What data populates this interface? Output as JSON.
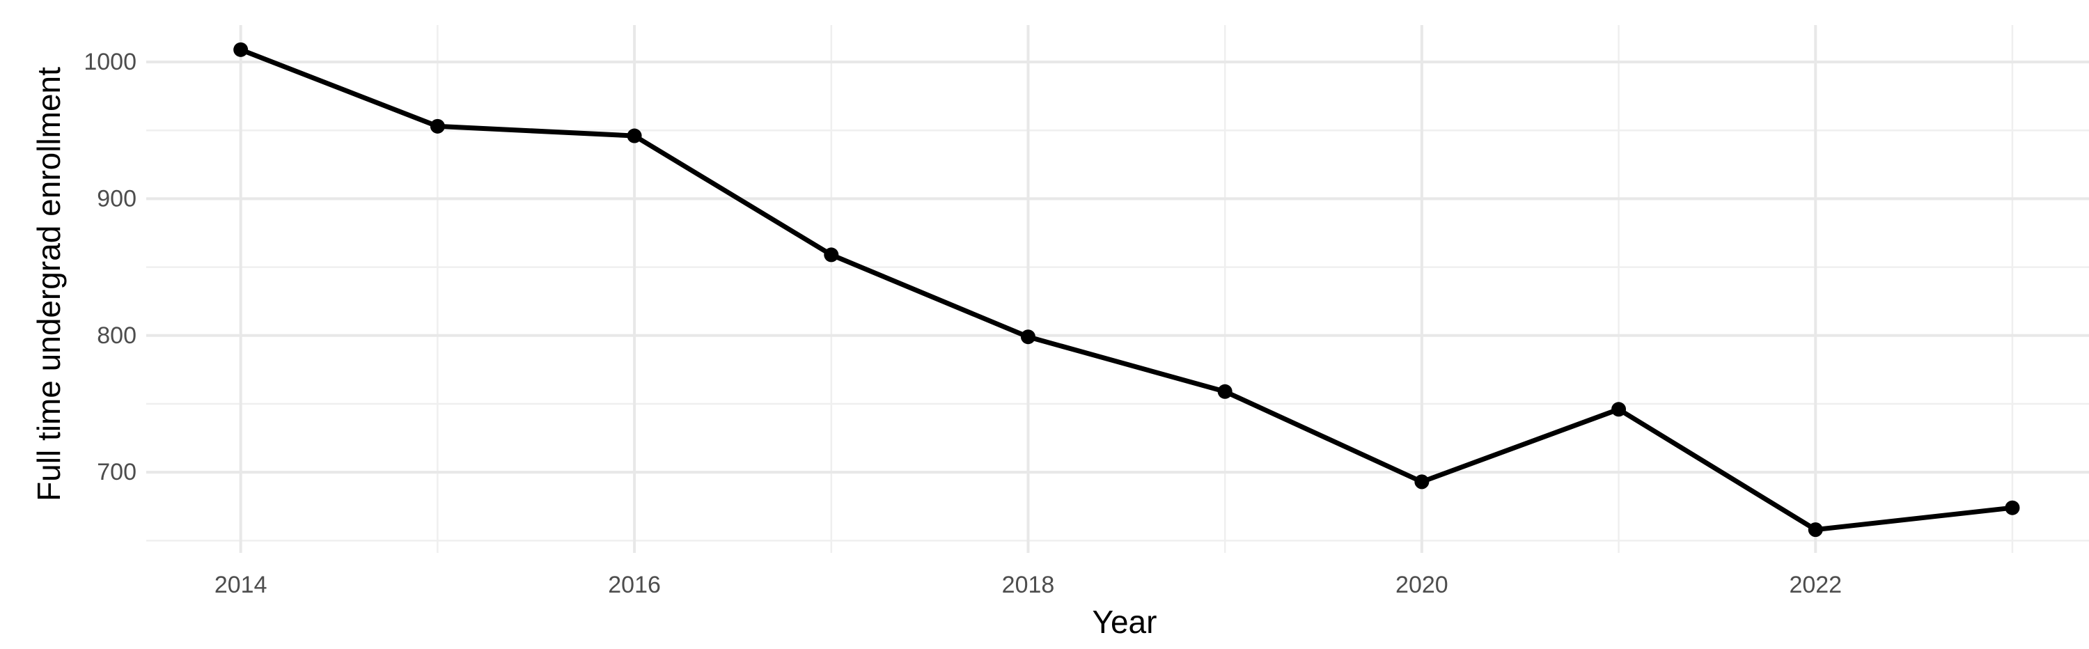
{
  "chart_data": {
    "type": "line",
    "title": "",
    "xlabel": "Year",
    "ylabel": "Full time undergrad enrollment",
    "x": [
      2014,
      2015,
      2016,
      2017,
      2018,
      2019,
      2020,
      2021,
      2022,
      2023
    ],
    "series": [
      {
        "name": "Full time undergrad enrollment",
        "values": [
          1009,
          953,
          946,
          859,
          799,
          759,
          693,
          746,
          658,
          674
        ]
      }
    ],
    "x_tick_labels": [
      "2014",
      "2016",
      "2018",
      "2020",
      "2022"
    ],
    "x_major_ticks": [
      2014,
      2016,
      2018,
      2020,
      2022
    ],
    "x_minor_gridlines": [
      2015,
      2017,
      2019,
      2021,
      2023
    ],
    "y_tick_labels": [
      "700",
      "800",
      "900",
      "1000"
    ],
    "y_major_ticks": [
      700,
      800,
      900,
      1000
    ],
    "y_minor_gridlines": [
      650,
      750,
      850,
      950
    ],
    "xlim": [
      2013.52,
      2023.46
    ],
    "ylim": [
      641,
      1027
    ],
    "grid": "major-and-minor",
    "legend_position": "none",
    "colors": {
      "line": "#000000",
      "point": "#000000",
      "grid_major": "#e8e8e8",
      "grid_minor": "#efefef",
      "tick_label": "#4d4d4d",
      "axis_title": "#000000",
      "background": "#ffffff"
    }
  }
}
